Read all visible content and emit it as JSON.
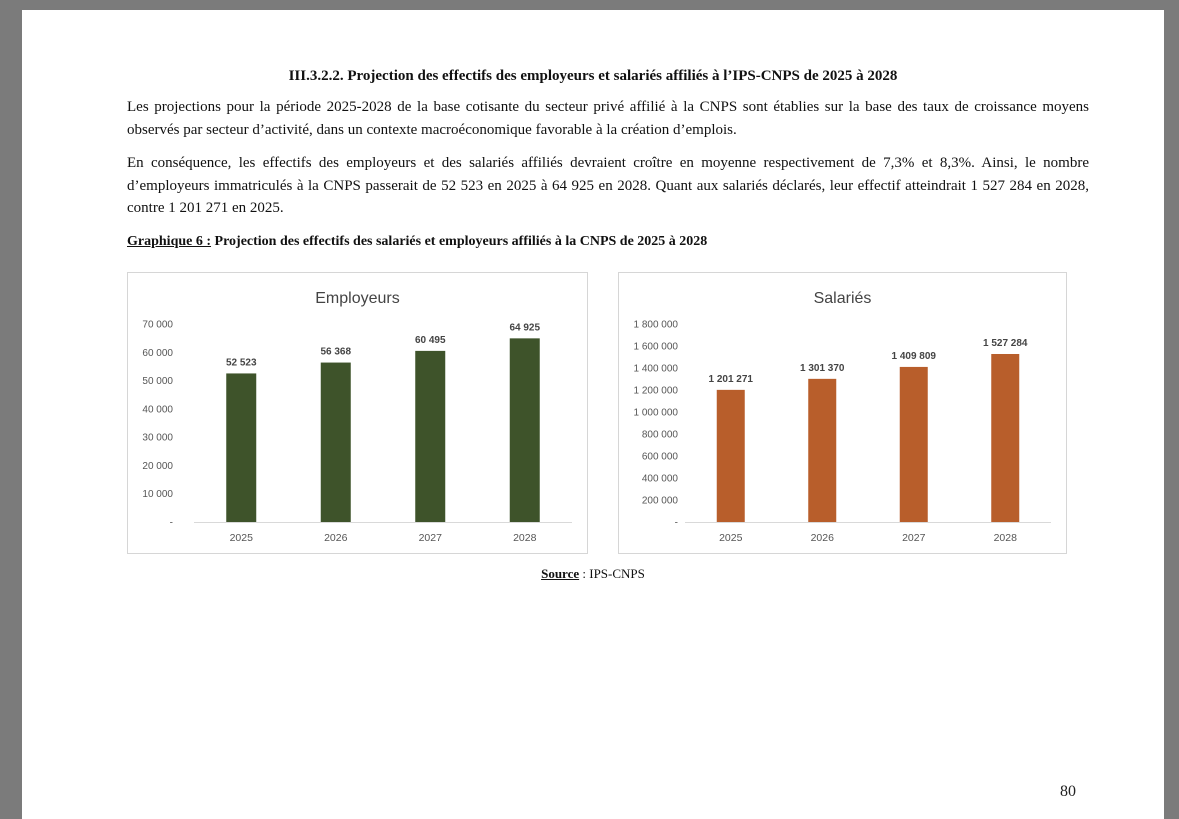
{
  "section_heading": "III.3.2.2. Projection des effectifs des employeurs et salariés affiliés à l’IPS-CNPS de 2025 à 2028",
  "paragraph_1": "Les projections pour la période 2025-2028 de la base cotisante du secteur privé affilié à la CNPS sont établies sur la base des taux de croissance moyens observés par secteur d’activité, dans un contexte macroéconomique favorable à la création d’emplois.",
  "paragraph_2": "En conséquence, les effectifs des employeurs et des salariés affiliés devraient croître en moyenne respectivement de 7,3% et 8,3%. Ainsi, le nombre d’employeurs immatriculés à la CNPS passerait de 52 523 en 2025 à 64 925 en 2028. Quant aux salariés déclarés, leur effectif atteindrait 1 527 284 en 2028, contre 1 201 271 en 2025.",
  "figure_caption": {
    "label": "Graphique 6 :",
    "text": " Projection des effectifs des salariés et employeurs affiliés à la CNPS de 2025 à 2028"
  },
  "source": {
    "label": "Source",
    "text": " : IPS-CNPS"
  },
  "page_number": "80",
  "chart_data": [
    {
      "type": "bar",
      "title": "Employeurs",
      "categories": [
        "2025",
        "2026",
        "2027",
        "2028"
      ],
      "values": [
        52523,
        56368,
        60495,
        64925
      ],
      "value_labels": [
        "52 523",
        "56 368",
        "60 495",
        "64 925"
      ],
      "ylim": [
        0,
        70000
      ],
      "yticks": [
        0,
        10000,
        20000,
        30000,
        40000,
        50000,
        60000,
        70000
      ],
      "ytick_labels": [
        "-",
        "10 000",
        "20 000",
        "30 000",
        "40 000",
        "50 000",
        "60 000",
        "70 000"
      ],
      "color": "#3e532a",
      "grid": false
    },
    {
      "type": "bar",
      "title": "Salariés",
      "categories": [
        "2025",
        "2026",
        "2027",
        "2028"
      ],
      "values": [
        1201271,
        1301370,
        1409809,
        1527284
      ],
      "value_labels": [
        "1 201 271",
        "1 301 370",
        "1 409 809",
        "1 527 284"
      ],
      "ylim": [
        0,
        1800000
      ],
      "yticks": [
        0,
        200000,
        400000,
        600000,
        800000,
        1000000,
        1200000,
        1400000,
        1600000,
        1800000
      ],
      "ytick_labels": [
        "-",
        "200 000",
        "400 000",
        "600 000",
        "800 000",
        "1 000 000",
        "1 200 000",
        "1 400 000",
        "1 600 000",
        "1 800 000"
      ],
      "color": "#b85e2b",
      "grid": false
    }
  ]
}
